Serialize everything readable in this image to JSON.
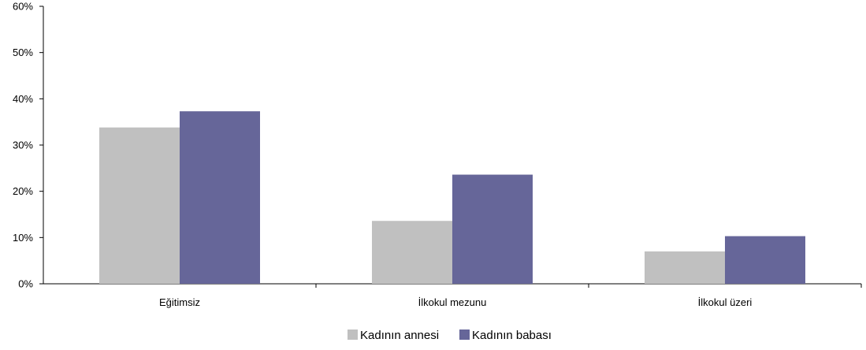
{
  "chart_data": {
    "type": "bar",
    "categories": [
      "Eğitimsiz",
      "İlkokul mezunu",
      "İlkokul üzeri"
    ],
    "series": [
      {
        "name": "Kadının annesi",
        "values": [
          33.8,
          13.6,
          7.0
        ],
        "color": "#c0c0c0"
      },
      {
        "name": "Kadının babası",
        "values": [
          37.3,
          23.6,
          10.3
        ],
        "color": "#666699"
      }
    ],
    "ylim": [
      0,
      60
    ],
    "yticks": [
      0,
      10,
      20,
      30,
      40,
      50,
      60
    ],
    "ytick_format": "percent",
    "grid": false,
    "legend_position": "bottom"
  }
}
